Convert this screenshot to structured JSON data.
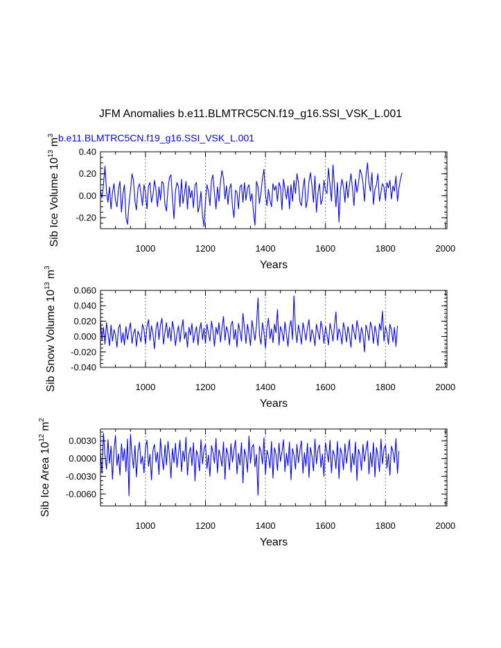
{
  "title": "JFM Anomalies b.e11.BLMTRC5CN.f19_g16.SSI_VSK_L.001",
  "run_label": "b.e11.BLMTRC5CN.f19_g16.SSI_VSK_L.001",
  "colors": {
    "series": "#0000ff",
    "axes": "#000000",
    "reference_lines": "#555555"
  },
  "chart_data": [
    {
      "type": "line",
      "ylabel_text": "Sib Ice Volume 10",
      "ylabel_exp": "13",
      "ylabel_unit": " m",
      "ylabel_unit_exp": "3",
      "xlabel": "Years",
      "xlim": [
        850,
        2005
      ],
      "ylim": [
        -0.3,
        0.4
      ],
      "yticks": [
        -0.2,
        0.0,
        0.2,
        0.4
      ],
      "ytick_labels": [
        "-0.20",
        "0.00",
        "0.20",
        "0.40"
      ],
      "xticks": [
        1000,
        1200,
        1400,
        1600,
        1800,
        2000
      ],
      "xtick_labels": [
        "1000",
        "1200",
        "1400",
        "1600",
        "1800",
        "2000"
      ],
      "reference_years": [
        1000,
        1200,
        1400,
        1600,
        1800,
        2000
      ],
      "series": [
        {
          "x_start": 850,
          "x_step": 5,
          "values": [
            0.05,
            -0.02,
            0.1,
            0.27,
            0.04,
            -0.06,
            0.08,
            -0.12,
            0.03,
            0.11,
            -0.04,
            -0.1,
            0.06,
            0.13,
            -0.15,
            0.02,
            0.1,
            -0.2,
            -0.26,
            -0.08,
            0.05,
            0.2,
            0.14,
            -0.05,
            -0.13,
            0.07,
            0.11,
            0.02,
            -0.09,
            0.1,
            0.03,
            -0.12,
            0.09,
            0.12,
            -0.06,
            0.01,
            0.14,
            0.05,
            -0.1,
            0.08,
            -0.04,
            0.13,
            0.11,
            -0.08,
            -0.14,
            0.06,
            0.17,
            0.19,
            -0.03,
            -0.21,
            0.04,
            0.12,
            0.08,
            -0.1,
            0.15,
            -0.07,
            0.02,
            0.13,
            -0.12,
            0.09,
            -0.02,
            0.05,
            -0.11,
            0.1,
            0.12,
            -0.15,
            -0.09,
            0.04,
            -0.18,
            -0.28,
            -0.05,
            0.1,
            0.04,
            -0.09,
            0.14,
            0.19,
            0.02,
            -0.12,
            0.08,
            -0.05,
            0.13,
            0.23,
            0.16,
            -0.03,
            0.09,
            -0.08,
            0.06,
            0.11,
            -0.1,
            -0.2,
            0.05,
            0.03,
            -0.12,
            0.08,
            0.1,
            -0.06,
            0.12,
            -0.04,
            0.07,
            0.1,
            -0.05,
            0.02,
            -0.15,
            -0.27,
            0.13,
            0.08,
            -0.07,
            0.03,
            0.16,
            0.24,
            0.01,
            -0.09,
            0.06,
            -0.04,
            -0.1,
            0.11,
            0.05,
            0.09,
            -0.05,
            0.12,
            0.08,
            -0.13,
            0.15,
            0.06,
            -0.03,
            0.09,
            -0.12,
            0.1,
            -0.05,
            0.14,
            0.02,
            0.2,
            0.12,
            -0.06,
            -0.09,
            0.07,
            0.16,
            -0.11,
            -0.04,
            0.13,
            0.21,
            0.09,
            -0.06,
            0.18,
            -0.15,
            0.03,
            0.11,
            -0.08,
            -0.03,
            0.14,
            0.05,
            0.02,
            0.25,
            0.1,
            -0.05,
            0.28,
            0.08,
            -0.1,
            0.12,
            -0.24,
            0.05,
            0.15,
            0.08,
            -0.06,
            0.13,
            -0.02,
            0.1,
            0.2,
            0.07,
            -0.09,
            0.15,
            0.03,
            0.11,
            0.24,
            0.2,
            0.12,
            -0.05,
            0.17,
            0.3,
            0.12,
            0.04,
            0.21,
            -0.08,
            0.06,
            0.1,
            0.2,
            -0.05,
            0.03,
            0.11,
            0.08,
            -0.04,
            0.12,
            0.07,
            0.14,
            -0.03,
            0.09,
            0.04,
            0.18,
            -0.05,
            0.07,
            0.15,
            0.21
          ]
        }
      ]
    },
    {
      "type": "line",
      "ylabel_text": "Sib Snow Volume 10",
      "ylabel_exp": "13",
      "ylabel_unit": " m",
      "ylabel_unit_exp": "3",
      "xlabel": "Years",
      "xlim": [
        850,
        2005
      ],
      "ylim": [
        -0.04,
        0.06
      ],
      "yticks": [
        -0.04,
        -0.02,
        0.0,
        0.02,
        0.04,
        0.06
      ],
      "ytick_labels": [
        "-0.040",
        "-0.020",
        "0.000",
        "0.020",
        "0.040",
        "0.060"
      ],
      "xticks": [
        1000,
        1200,
        1400,
        1600,
        1800,
        2000
      ],
      "xtick_labels": [
        "1000",
        "1200",
        "1400",
        "1600",
        "1800",
        "2000"
      ],
      "reference_years": [
        1000,
        1200,
        1400,
        1600,
        1800,
        2000
      ],
      "series": [
        {
          "x_start": 850,
          "x_step": 5,
          "values": [
            0.022,
            -0.005,
            0.012,
            -0.01,
            0.018,
            0.004,
            -0.012,
            0.015,
            -0.006,
            0.009,
            0.002,
            -0.014,
            0.011,
            0.016,
            -0.008,
            0.005,
            -0.011,
            0.013,
            -0.004,
            0.008,
            0.018,
            -0.009,
            0.004,
            0.01,
            -0.013,
            0.007,
            0.002,
            -0.007,
            0.016,
            0.009,
            -0.01,
            0.013,
            0.022,
            -0.005,
            0.014,
            0.003,
            -0.016,
            0.01,
            0.019,
            -0.004,
            0.015,
            0.024,
            -0.01,
            0.006,
            0.018,
            -0.002,
            0.012,
            -0.006,
            0.02,
            0.008,
            -0.012,
            0.004,
            0.014,
            -0.007,
            0.01,
            0.022,
            -0.003,
            0.006,
            -0.014,
            0.012,
            0.002,
            0.017,
            -0.008,
            0.005,
            0.013,
            -0.011,
            0.009,
            0.018,
            -0.004,
            0.011,
            -0.009,
            0.016,
            0.004,
            -0.006,
            0.02,
            0.008,
            -0.013,
            0.012,
            0.003,
            0.018,
            -0.007,
            0.01,
            0.026,
            -0.005,
            0.013,
            0.006,
            -0.011,
            0.015,
            0.02,
            -0.004,
            0.009,
            -0.014,
            0.017,
            0.007,
            -0.006,
            0.03,
            0.011,
            -0.009,
            0.016,
            0.004,
            -0.012,
            0.021,
            0.008,
            -0.005,
            0.014,
            0.05,
            0.002,
            -0.01,
            0.018,
            0.006,
            -0.015,
            0.012,
            0.024,
            -0.003,
            0.01,
            -0.008,
            0.016,
            0.005,
            0.035,
            -0.011,
            0.013,
            0.007,
            -0.006,
            0.019,
            0.003,
            -0.013,
            0.012,
            0.021,
            -0.004,
            0.053,
            0.009,
            -0.008,
            0.015,
            0.004,
            -0.01,
            0.018,
            0.007,
            -0.005,
            0.012,
            0.022,
            -0.007,
            0.009,
            0.002,
            -0.012,
            0.016,
            0.006,
            -0.004,
            0.02,
            0.01,
            -0.009,
            0.013,
            0.003,
            -0.011,
            0.017,
            0.008,
            -0.006,
            0.014,
            0.032,
            -0.005,
            0.01,
            0.004,
            -0.01,
            0.018,
            0.009,
            -0.007,
            0.013,
            0.002,
            -0.014,
            0.016,
            0.006,
            -0.004,
            0.021,
            0.01,
            -0.008,
            0.012,
            0.003,
            -0.02,
            0.015,
            0.007,
            -0.005,
            0.019,
            0.011,
            -0.009,
            0.014,
            0.004,
            -0.012,
            0.017,
            0.008,
            0.033,
            -0.006,
            0.013,
            0.005,
            -0.01,
            0.016,
            0.009,
            -0.007,
            0.012,
            -0.013,
            0.014
          ]
        }
      ]
    },
    {
      "type": "line",
      "ylabel_text": "Sib Ice Area 10",
      "ylabel_exp": "12",
      "ylabel_unit": " m",
      "ylabel_unit_exp": "2",
      "xlabel": "Years",
      "xlim": [
        850,
        2005
      ],
      "ylim": [
        -0.008,
        0.005
      ],
      "yticks": [
        -0.006,
        -0.003,
        0.0,
        0.003
      ],
      "ytick_labels": [
        "-0.0060",
        "-0.0030",
        "0.0000",
        "0.0030"
      ],
      "xticks": [
        1000,
        1200,
        1400,
        1600,
        1800,
        2000
      ],
      "xtick_labels": [
        "1000",
        "1200",
        "1400",
        "1600",
        "1800",
        "2000"
      ],
      "reference_years": [
        1000,
        1200,
        1400,
        1600,
        1800,
        2000
      ],
      "series": [
        {
          "x_start": 850,
          "x_step": 5,
          "values": [
            0.001,
            -0.0025,
            0.0043,
            0.0005,
            -0.0018,
            0.0032,
            -0.0008,
            0.0021,
            -0.0035,
            0.0014,
            0.0039,
            -0.0012,
            0.0008,
            -0.0028,
            0.0025,
            -0.0004,
            0.0017,
            -0.0022,
            0.0033,
            -0.0063,
            0.0041,
            0.0006,
            -0.0016,
            0.0022,
            -0.0031,
            0.0012,
            0.0028,
            -0.0009,
            0.0004,
            -0.0024,
            0.0019,
            0.0031,
            -0.0013,
            0.0007,
            -0.0036,
            0.0015,
            0.0024,
            -0.0006,
            0.0011,
            -0.0027,
            0.0034,
            0.0003,
            -0.0019,
            0.0023,
            -0.0011,
            0.0029,
            0.0005,
            -0.0033,
            0.0017,
            -0.0007,
            0.0026,
            -0.0015,
            0.0009,
            0.0031,
            -0.0022,
            0.0013,
            -0.0005,
            0.0036,
            -0.0028,
            0.0008,
            0.0019,
            -0.0012,
            0.0027,
            -0.0038,
            0.0014,
            0.0004,
            -0.0021,
            0.0032,
            -0.0009,
            0.0016,
            0.0024,
            -0.0017,
            0.0006,
            -0.003,
            0.0022,
            0.0011,
            -0.0008,
            0.0034,
            -0.0024,
            0.0015,
            0.0003,
            -0.0013,
            0.0028,
            -0.0035,
            0.0018,
            0.0007,
            -0.0019,
            0.0025,
            -0.0006,
            0.0013,
            0.0031,
            -0.0026,
            0.0009,
            -0.0011,
            0.0027,
            -0.0041,
            0.0016,
            0.0005,
            -0.0023,
            0.0038,
            -0.0008,
            0.0019,
            0.0024,
            -0.0014,
            0.0007,
            -0.0062,
            0.0021,
            0.0012,
            -0.0009,
            0.0035,
            -0.0027,
            0.0014,
            0.0004,
            -0.0016,
            0.0029,
            -0.0033,
            0.0018,
            0.0008,
            -0.002,
            0.0026,
            -0.0005,
            0.0011,
            0.0032,
            -0.0022,
            0.0009,
            -0.0012,
            0.0028,
            -0.0036,
            0.0017,
            0.0006,
            -0.0018,
            0.0024,
            -0.0007,
            0.0015,
            0.003,
            -0.0025,
            0.001,
            -0.0013,
            0.0026,
            -0.0032,
            0.0019,
            0.0004,
            -0.0021,
            0.0033,
            -0.0009,
            0.0016,
            0.0023,
            -0.0015,
            0.0008,
            -0.003,
            0.0027,
            0.0012,
            -0.0006,
            0.0031,
            -0.0024,
            0.0014,
            0.0005,
            -0.0017,
            0.0029,
            -0.0034,
            0.0018,
            0.0007,
            -0.0019,
            0.0025,
            -0.0008,
            0.0013,
            0.0032,
            -0.0023,
            0.0009,
            -0.0011,
            0.0028,
            -0.0037,
            0.0016,
            0.0006,
            -0.002,
            0.0024,
            -0.0005,
            0.0014,
            0.003,
            -0.0026,
            0.001,
            -0.0014,
            0.0027,
            -0.0031,
            0.0019,
            0.0004,
            -0.0022,
            0.0033,
            -0.0009,
            0.0016,
            0.0023,
            -0.0016,
            0.0008,
            -0.0028,
            0.0021,
            0.0012,
            -0.0007,
            0.0034,
            -0.0025,
            0.0013
          ]
        }
      ]
    }
  ]
}
